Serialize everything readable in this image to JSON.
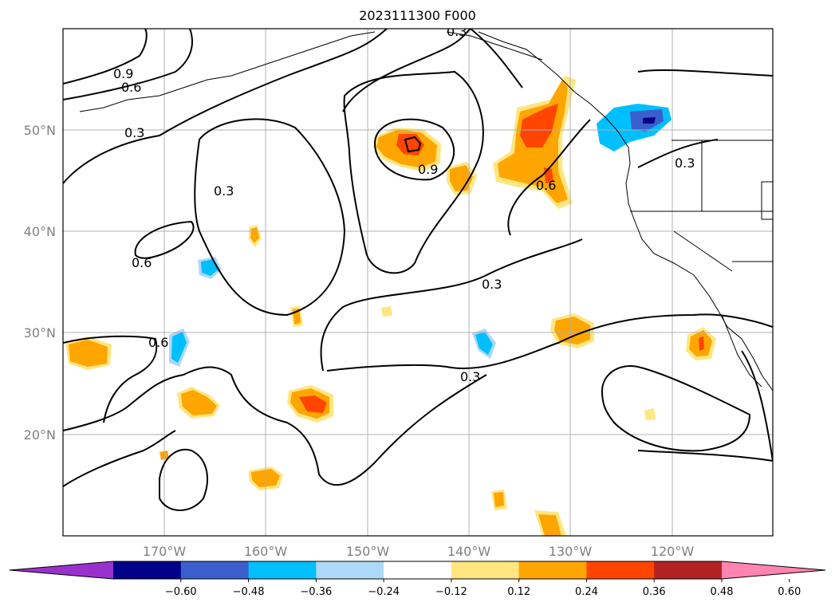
{
  "title": "2023111300 F000",
  "lat_labels": [
    "50°N",
    "40°N",
    "30°N",
    "20°N"
  ],
  "lon_labels": [
    "170°W",
    "160°W",
    "150°W",
    "140°W",
    "130°W",
    "120°W"
  ],
  "contour_labels": [
    "0.9",
    "0.6",
    "0.3",
    "0.3",
    "0.9",
    "0.6",
    "0.3",
    "0.3",
    "0.6",
    "0.6",
    "0.3",
    "0.3"
  ],
  "colorbar": {
    "ticks": [
      "−0.60",
      "−0.48",
      "−0.36",
      "−0.24",
      "−0.12",
      "0.12",
      "0.24",
      "0.36",
      "0.48",
      "0.60"
    ],
    "colors": [
      "#9932cc",
      "#00008b",
      "#3a5fcd",
      "#00bfff",
      "#add8f7",
      "#ffffff",
      "#ffe680",
      "#ffa500",
      "#ff4500",
      "#b22222",
      "#ff85b0"
    ]
  }
}
